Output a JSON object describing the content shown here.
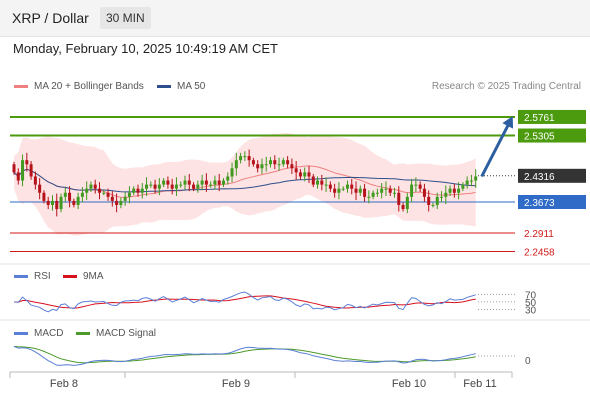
{
  "header": {
    "title": "XRP / Dollar",
    "interval": "30 MIN"
  },
  "timestamp": "Monday, February 10, 2025 10:49:19 AM CET",
  "legend": {
    "ma20": {
      "label": "MA 20 + Bollinger Bands",
      "color": "#f08080"
    },
    "ma50": {
      "label": "MA 50",
      "color": "#2d4f8b"
    },
    "rsi": {
      "label": "RSI",
      "color": "#5b7fd6"
    },
    "rsi_ma": {
      "label": "9MA",
      "color": "#d8101e"
    },
    "macd": {
      "label": "MACD",
      "color": "#5b7fd6"
    },
    "macd_signal": {
      "label": "MACD Signal",
      "color": "#4c9a2a"
    }
  },
  "copyright": "Research © 2025 Trading Central",
  "chart_data": {
    "type": "candlestick",
    "x_ticks": [
      "Feb 8",
      "Feb 9",
      "Feb 10",
      "Feb 11"
    ],
    "price_range": [
      2.22,
      2.63
    ],
    "levels": [
      {
        "value": 2.5761,
        "label": "2.5761",
        "color": "#4c9a0e",
        "kind": "resistance"
      },
      {
        "value": 2.5305,
        "label": "2.5305",
        "color": "#4c9a0e",
        "kind": "resistance"
      },
      {
        "value": 2.4316,
        "label": "2.4316",
        "color": "#333333",
        "kind": "last"
      },
      {
        "value": 2.3673,
        "label": "2.3673",
        "color": "#2f6bc7",
        "kind": "pivot"
      },
      {
        "value": 2.2911,
        "label": "2.2911",
        "color": "#d01a1a",
        "kind": "support"
      },
      {
        "value": 2.2458,
        "label": "2.2458",
        "color": "#d01a1a",
        "kind": "support"
      }
    ],
    "arrow": {
      "from": 2.43,
      "to": 2.565,
      "color": "#2d5fa0"
    },
    "closes": [
      2.44,
      2.42,
      2.47,
      2.46,
      2.43,
      2.41,
      2.39,
      2.37,
      2.36,
      2.37,
      2.35,
      2.38,
      2.39,
      2.37,
      2.36,
      2.38,
      2.39,
      2.4,
      2.41,
      2.4,
      2.39,
      2.39,
      2.38,
      2.37,
      2.36,
      2.37,
      2.38,
      2.39,
      2.4,
      2.39,
      2.4,
      2.41,
      2.41,
      2.4,
      2.41,
      2.42,
      2.41,
      2.4,
      2.41,
      2.41,
      2.42,
      2.41,
      2.4,
      2.41,
      2.42,
      2.41,
      2.41,
      2.42,
      2.41,
      2.42,
      2.43,
      2.45,
      2.47,
      2.48,
      2.48,
      2.47,
      2.46,
      2.45,
      2.46,
      2.46,
      2.47,
      2.46,
      2.46,
      2.47,
      2.46,
      2.45,
      2.44,
      2.43,
      2.44,
      2.43,
      2.41,
      2.42,
      2.41,
      2.41,
      2.4,
      2.39,
      2.4,
      2.4,
      2.41,
      2.4,
      2.39,
      2.4,
      2.38,
      2.38,
      2.39,
      2.39,
      2.4,
      2.4,
      2.39,
      2.39,
      2.36,
      2.35,
      2.38,
      2.41,
      2.41,
      2.4,
      2.38,
      2.36,
      2.36,
      2.38,
      2.38,
      2.39,
      2.4,
      2.39,
      2.4,
      2.41,
      2.42,
      2.42,
      2.43
    ],
    "rsi": {
      "levels": [
        70,
        50,
        30
      ]
    },
    "macd": {
      "levels": [
        0
      ]
    }
  }
}
